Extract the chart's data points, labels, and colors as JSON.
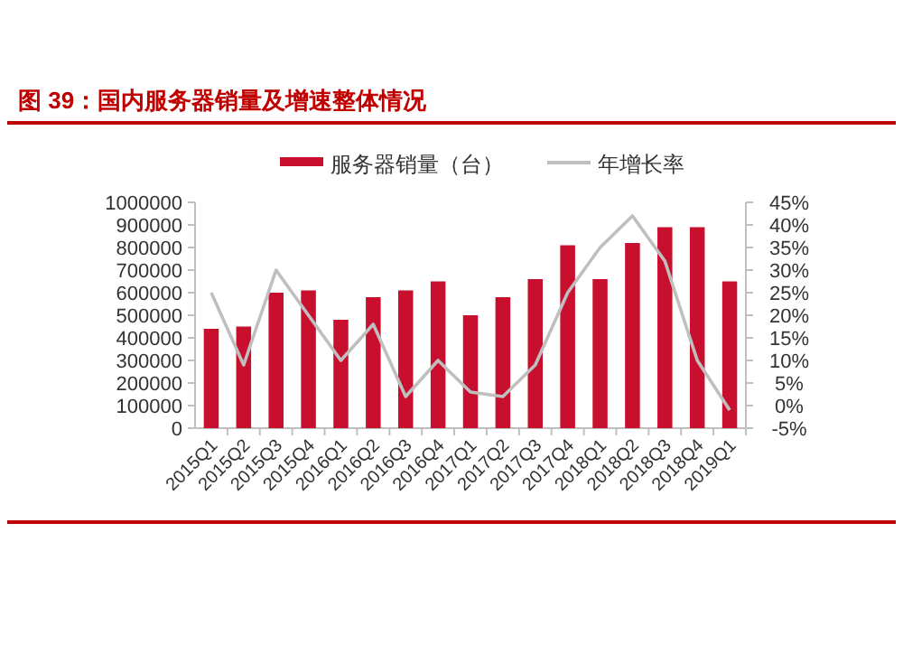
{
  "chart_data": {
    "type": "bar",
    "title": "图 39：国内服务器销量及增速整体情况",
    "categories": [
      "2015Q1",
      "2015Q2",
      "2015Q3",
      "2015Q4",
      "2016Q1",
      "2016Q2",
      "2016Q3",
      "2016Q4",
      "2017Q1",
      "2017Q2",
      "2017Q3",
      "2017Q4",
      "2018Q1",
      "2018Q2",
      "2018Q3",
      "2018Q4",
      "2019Q1"
    ],
    "series": [
      {
        "name": "服务器销量（台）",
        "color": "#c8102e",
        "values": [
          440000,
          450000,
          600000,
          610000,
          480000,
          580000,
          610000,
          650000,
          500000,
          580000,
          660000,
          810000,
          660000,
          820000,
          890000,
          890000,
          650000
        ]
      },
      {
        "name": "年增长率",
        "type": "line",
        "axis": "y2",
        "color": "#bfbfbf",
        "values": [
          25,
          9,
          30,
          20,
          10,
          18,
          2,
          10,
          3,
          2,
          9,
          25,
          35,
          42,
          32,
          10,
          -1
        ]
      }
    ],
    "ylim": [
      0,
      1000000
    ],
    "yticks": [
      0,
      100000,
      200000,
      300000,
      400000,
      500000,
      600000,
      700000,
      800000,
      900000,
      1000000
    ],
    "y2lim": [
      -5,
      45
    ],
    "y2ticks": [
      {
        "value": -5,
        "label": "-5%"
      },
      {
        "value": 0,
        "label": "0%"
      },
      {
        "value": 5,
        "label": "5%"
      },
      {
        "value": 10,
        "label": "10%"
      },
      {
        "value": 15,
        "label": "15%"
      },
      {
        "value": 20,
        "label": "20%"
      },
      {
        "value": 25,
        "label": "25%"
      },
      {
        "value": 30,
        "label": "30%"
      },
      {
        "value": 35,
        "label": "35%"
      },
      {
        "value": 40,
        "label": "40%"
      },
      {
        "value": 45,
        "label": "45%"
      }
    ],
    "legend": "top"
  }
}
